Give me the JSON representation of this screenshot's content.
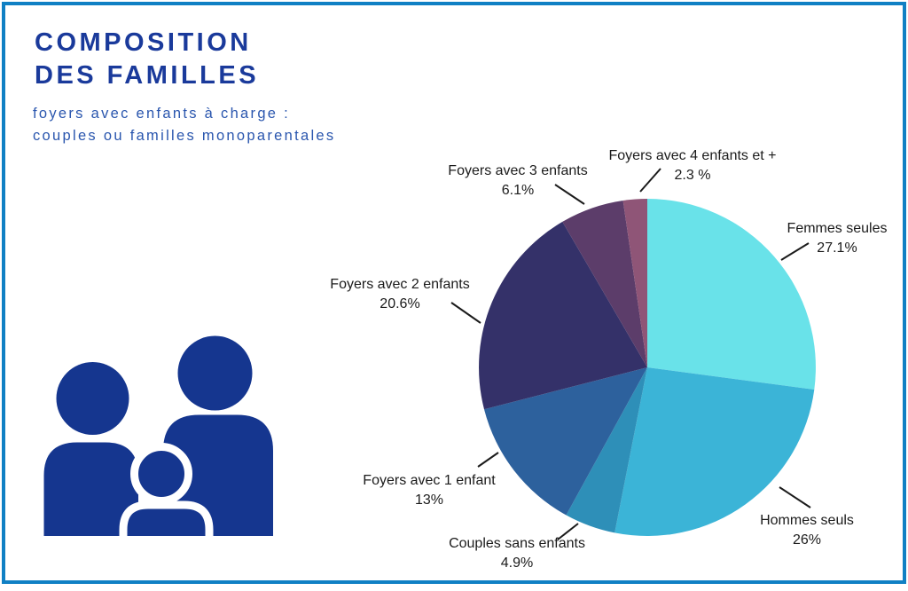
{
  "header": {
    "title_lines": [
      "COMPOSITION",
      "DES FAMILLES"
    ],
    "subtitle_lines": [
      "foyers avec enfants à charge :",
      "couples ou familles monoparentales"
    ],
    "title_color": "#1A3A9B",
    "subtitle_color": "#2A56AE"
  },
  "card": {
    "border_color": "#1080C4",
    "background_color": "#FFFFFF"
  },
  "icon": {
    "name": "family-icon",
    "color": "#15368F"
  },
  "chart_data": {
    "type": "pie",
    "unit": "%",
    "direction": "clockwise",
    "start_angle_deg": 0,
    "legend_position": "none",
    "label_color": "#1B1B1B",
    "slices": [
      {
        "label": "Femmes seules",
        "value": 27.1,
        "value_label": "27.1%",
        "color": "#69E2E9"
      },
      {
        "label": "Hommes seuls",
        "value": 26,
        "value_label": "26%",
        "color": "#3BB4D7"
      },
      {
        "label": "Couples sans enfants",
        "value": 4.9,
        "value_label": "4.9%",
        "color": "#2E8FB8"
      },
      {
        "label": "Foyers avec 1 enfant",
        "value": 13,
        "value_label": "13%",
        "color": "#2D619D"
      },
      {
        "label": "Foyers avec 2 enfants",
        "value": 20.6,
        "value_label": "20.6%",
        "color": "#343169"
      },
      {
        "label": "Foyers avec 3 enfants",
        "value": 6.1,
        "value_label": "6.1%",
        "color": "#5C3D6A"
      },
      {
        "label": "Foyers avec 4 enfants et +",
        "value": 2.3,
        "value_label": "2.3 %",
        "color": "#8F5577"
      }
    ]
  }
}
